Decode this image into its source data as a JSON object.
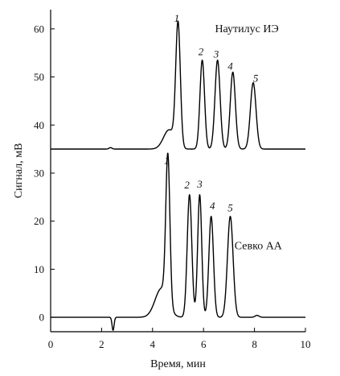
{
  "chart_data": {
    "type": "line",
    "xlabel": "Время, мин",
    "ylabel": "Сигнал, мВ",
    "xlim": [
      0,
      10
    ],
    "ylim": [
      -3,
      64
    ],
    "x_ticks": [
      0,
      2,
      4,
      6,
      8,
      10
    ],
    "y_ticks": [
      0,
      10,
      20,
      30,
      40,
      50,
      60
    ],
    "grid": false,
    "legend": "none",
    "line_color": "#000000",
    "series": [
      {
        "name": "Наутилус ИЭ",
        "baseline": 35,
        "features": [
          {
            "kind": "peak",
            "x": 2.35,
            "height": 0.3,
            "width": 0.06
          },
          {
            "kind": "hump",
            "x": 4.65,
            "height": 4.0,
            "width": 0.22
          },
          {
            "kind": "peak",
            "x": 5.0,
            "height": 25.5,
            "width": 0.09
          },
          {
            "kind": "peak",
            "x": 5.95,
            "height": 18.5,
            "width": 0.09
          },
          {
            "kind": "peak",
            "x": 6.55,
            "height": 18.5,
            "width": 0.1
          },
          {
            "kind": "peak",
            "x": 7.15,
            "height": 16.0,
            "width": 0.1
          },
          {
            "kind": "peak",
            "x": 7.95,
            "height": 13.8,
            "width": 0.11
          }
        ]
      },
      {
        "name": "Севко АА",
        "baseline": 0,
        "features": [
          {
            "kind": "peak",
            "x": 2.45,
            "height": -2.7,
            "width": 0.04
          },
          {
            "kind": "hump",
            "x": 4.35,
            "height": 6.0,
            "width": 0.25
          },
          {
            "kind": "peak",
            "x": 4.6,
            "height": 30.5,
            "width": 0.08
          },
          {
            "kind": "peak",
            "x": 5.45,
            "height": 25.5,
            "width": 0.09
          },
          {
            "kind": "peak",
            "x": 5.85,
            "height": 25.5,
            "width": 0.08
          },
          {
            "kind": "peak",
            "x": 6.3,
            "height": 21.0,
            "width": 0.09
          },
          {
            "kind": "peak",
            "x": 7.05,
            "height": 21.0,
            "width": 0.11
          },
          {
            "kind": "peak",
            "x": 8.1,
            "height": 0.4,
            "width": 0.08
          }
        ]
      }
    ],
    "peak_labels": [
      {
        "text": "1",
        "x": 4.95,
        "y": 61.5
      },
      {
        "text": "2",
        "x": 5.9,
        "y": 54.5
      },
      {
        "text": "3",
        "x": 6.5,
        "y": 54.0
      },
      {
        "text": "4",
        "x": 7.05,
        "y": 51.5
      },
      {
        "text": "5",
        "x": 8.05,
        "y": 49.0
      },
      {
        "text": "1",
        "x": 4.55,
        "y": 31.8
      },
      {
        "text": "2",
        "x": 5.35,
        "y": 26.8
      },
      {
        "text": "3",
        "x": 5.85,
        "y": 27.0
      },
      {
        "text": "4",
        "x": 6.35,
        "y": 22.5
      },
      {
        "text": "5",
        "x": 7.05,
        "y": 22.0
      }
    ],
    "annotations": [
      {
        "text": "Наутилус ИЭ",
        "x": 7.7,
        "y": 59.3
      },
      {
        "text": "Севко АА",
        "x": 8.15,
        "y": 14.2
      }
    ]
  }
}
